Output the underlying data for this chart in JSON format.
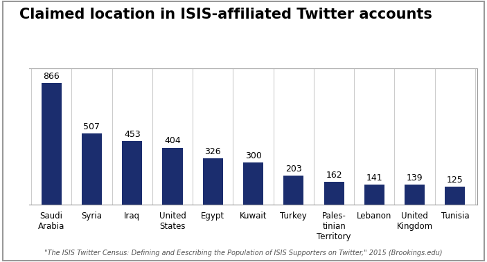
{
  "title": "Claimed location in ISIS-affiliated Twitter accounts",
  "categories": [
    "Saudi\nArabia",
    "Syria",
    "Iraq",
    "United\nStates",
    "Egypt",
    "Kuwait",
    "Turkey",
    "Pales-\ntinian\nTerritory",
    "Lebanon",
    "United\nKingdom",
    "Tunisia"
  ],
  "values": [
    866,
    507,
    453,
    404,
    326,
    300,
    203,
    162,
    141,
    139,
    125
  ],
  "bar_color": "#1b2d6e",
  "background_color": "#ffffff",
  "border_color": "#999999",
  "grid_color": "#cccccc",
  "ylim": [
    0,
    970
  ],
  "title_fontsize": 15,
  "label_fontsize": 8.5,
  "value_fontsize": 9,
  "footnote": "\"The ISIS Twitter Census: Defining and Eescribing the Population of ISIS Supporters on Twitter,\" 2015 (Brookings.edu)",
  "footnote_fontsize": 7
}
